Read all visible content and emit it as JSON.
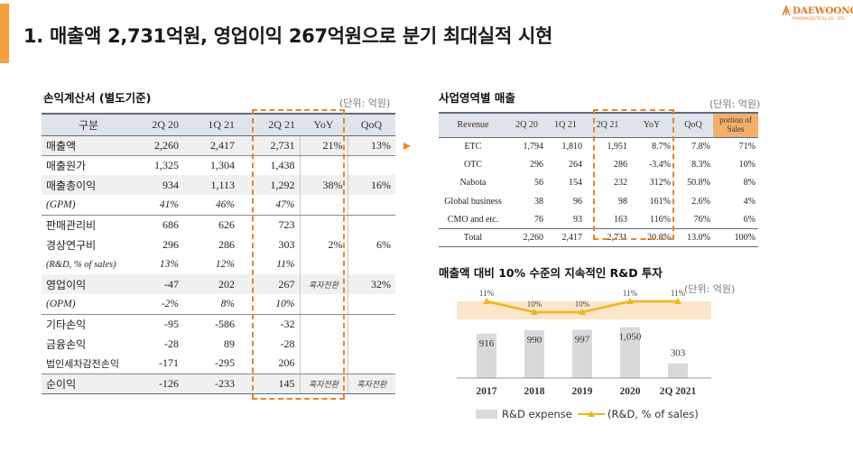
{
  "title": "1. 매출액 2,731억원, 영업이익 267억원으로 분기 최대실적 시현",
  "logo": {
    "name": "DAEWOONG",
    "sub": "PHARMACEUTICAL CO., LTD."
  },
  "income_statement": {
    "title": "손익계산서 (별도기준)",
    "unit": "(단위: 억원)",
    "headers": [
      "구분",
      "2Q 20",
      "1Q 21",
      "2Q 21",
      "YoY",
      "QoQ"
    ],
    "rows": [
      [
        "매출액",
        "2,260",
        "2,417",
        "2,731",
        "21%",
        "13%"
      ],
      [
        "매출원가",
        "1,325",
        "1,304",
        "1,438",
        "",
        ""
      ],
      [
        "매출총이익",
        "934",
        "1,113",
        "1,292",
        "38%",
        "16%"
      ],
      [
        "(GPM)",
        "41%",
        "46%",
        "47%",
        "",
        ""
      ],
      [
        "판매관리비",
        "686",
        "626",
        "723",
        "",
        ""
      ],
      [
        "경상연구비",
        "296",
        "286",
        "303",
        "2%",
        "6%"
      ],
      [
        "(R&D, % of sales)",
        "13%",
        "12%",
        "11%",
        "",
        ""
      ],
      [
        "영업이익",
        "-47",
        "202",
        "267",
        "흑자전환",
        "32%"
      ],
      [
        "(OPM)",
        "-2%",
        "8%",
        "10%",
        "",
        ""
      ],
      [
        "기타손익",
        "-95",
        "-586",
        "-32",
        "",
        ""
      ],
      [
        "금융손익",
        "-28",
        "89",
        "-28",
        "",
        ""
      ],
      [
        "법인세차감전손익",
        "-171",
        "-295",
        "206",
        "",
        ""
      ],
      [
        "순이익",
        "-126",
        "-233",
        "145",
        "흑자전환",
        "흑자전환"
      ]
    ]
  },
  "segment_sales": {
    "title": "사업영역별 매출",
    "unit": "(단위: 억원)",
    "headers": [
      "Revenue",
      "2Q 20",
      "1Q 21",
      "2Q 21",
      "YoY",
      "QoQ",
      "portion of Sales"
    ],
    "rows": [
      [
        "ETC",
        "1,794",
        "1,810",
        "1,951",
        "8.7%",
        "7.8%",
        "71%"
      ],
      [
        "OTC",
        "296",
        "264",
        "286",
        "-3.4%",
        "8.3%",
        "10%"
      ],
      [
        "Nabota",
        "56",
        "154",
        "232",
        "312%",
        "50.8%",
        "8%"
      ],
      [
        "Global business",
        "38",
        "96",
        "98",
        "161%",
        "2.6%",
        "4%"
      ],
      [
        "CMO and etc.",
        "76",
        "93",
        "163",
        "116%",
        "76%",
        "6%"
      ],
      [
        "Total",
        "2,260",
        "2,417",
        "2,731",
        "20.8%",
        "13.0%",
        "100%"
      ]
    ]
  },
  "rnd_section": {
    "title": "매출액 대비 10% 수준의 지속적인 R&D 투자",
    "unit": "(단위: 억원)"
  },
  "chart_data": {
    "type": "bar",
    "categories": [
      "2017",
      "2018",
      "2019",
      "2020",
      "2Q 2021"
    ],
    "series": [
      {
        "name": "R&D expense",
        "type": "bar",
        "values": [
          916,
          990,
          997,
          1050,
          303
        ],
        "labels": [
          "916",
          "990",
          "997",
          "1,050",
          "303"
        ],
        "color": "#d9d9d9"
      },
      {
        "name": "(R&D, % of sales)",
        "type": "line",
        "values": [
          11,
          10,
          10,
          11,
          11
        ],
        "labels": [
          "11%",
          "10%",
          "10%",
          "11%",
          "11%"
        ],
        "color": "#f2b418"
      }
    ],
    "ylim": [
      0,
      1100
    ],
    "legend": "bottom"
  },
  "colors": {
    "accent": "#f4a041",
    "dash": "#e8842a",
    "header_bg": "#dfe4ea",
    "portion_bg": "#f4b06b",
    "line": "#f2b418",
    "bar": "#d9d9d9"
  }
}
